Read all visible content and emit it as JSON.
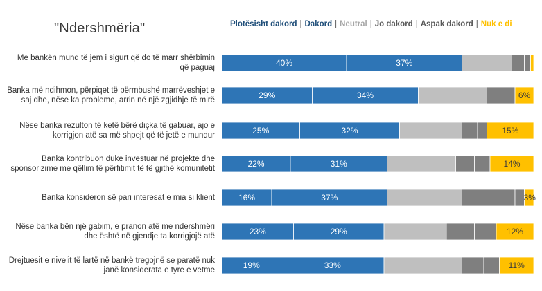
{
  "title": "\"Ndershmëria\"",
  "colors": {
    "plotesisht_dakord": "#2e75b6",
    "dakord": "#2e75b6",
    "neutral": "#bfbfbf",
    "jo_dakord": "#7f7f7f",
    "aspak_dakord": "#7f7f7f",
    "nuk_e_di": "#ffc000",
    "label_light": "#ffffff",
    "label_dark": "#3a3a3a"
  },
  "legend": [
    {
      "label": "Plotësisht dakord",
      "color": "#1f4e79"
    },
    {
      "label": "Dakord",
      "color": "#1f4e79"
    },
    {
      "label": "Neutral",
      "color": "#a6a6a6"
    },
    {
      "label": "Jo dakord",
      "color": "#595959"
    },
    {
      "label": "Aspak dakord",
      "color": "#595959"
    },
    {
      "label": "Nuk e di",
      "color": "#ffc000"
    }
  ],
  "chart_data": {
    "type": "bar",
    "orientation": "horizontal",
    "stacked": true,
    "percent_scale": true,
    "title": "\"Ndershmëria\"",
    "categories": [
      "Me bankën mund të jem i sigurt që do të marr shërbimin që paguaj",
      "Banka më ndihmon, përpiqet të përmbushë marrëveshjet e saj dhe, nëse ka probleme, arrin në një zgjidhje të mirë",
      "Nëse banka rezulton të ketë bërë diçka të gabuar, ajo e korrigjon atë sa më shpejt që të jetë e mundur",
      "Banka kontribuon duke investuar në projekte dhe sponsorizime me qëllim të përfitimit të të gjithë komunitetit",
      "Banka konsideron së pari interesat e mia si klient",
      "Nëse banka bën një gabim, e pranon atë me ndershmëri dhe është në gjendje ta korrigjojë atë",
      "Drejtuesit e nivelit të lartë në bankë tregojnë se paratë nuk janë konsiderata e tyre e vetme"
    ],
    "series": [
      {
        "name": "Plotësisht dakord",
        "values": [
          40,
          29,
          25,
          22,
          16,
          23,
          19
        ],
        "labels": [
          "40%",
          "29%",
          "25%",
          "22%",
          "16%",
          "23%",
          "19%"
        ]
      },
      {
        "name": "Dakord",
        "values": [
          37,
          34,
          32,
          31,
          37,
          29,
          33
        ],
        "labels": [
          "37%",
          "34%",
          "32%",
          "31%",
          "37%",
          "29%",
          "33%"
        ]
      },
      {
        "name": "Neutral",
        "values": [
          16,
          22,
          20,
          22,
          24,
          20,
          25
        ],
        "labels": [
          "",
          "",
          "",
          "",
          "",
          "",
          ""
        ]
      },
      {
        "name": "Jo dakord",
        "values": [
          4,
          8,
          5,
          6,
          17,
          9,
          7
        ],
        "labels": [
          "",
          "",
          "",
          "",
          "",
          "",
          ""
        ]
      },
      {
        "name": "Aspak dakord",
        "values": [
          2,
          1,
          3,
          5,
          3,
          7,
          5
        ],
        "labels": [
          "",
          "",
          "",
          "",
          "",
          "",
          ""
        ]
      },
      {
        "name": "Nuk e di",
        "values": [
          1,
          6,
          15,
          14,
          3,
          12,
          11
        ],
        "labels": [
          "",
          "6%",
          "15%",
          "14%",
          "3%",
          "12%",
          "11%"
        ]
      }
    ]
  }
}
